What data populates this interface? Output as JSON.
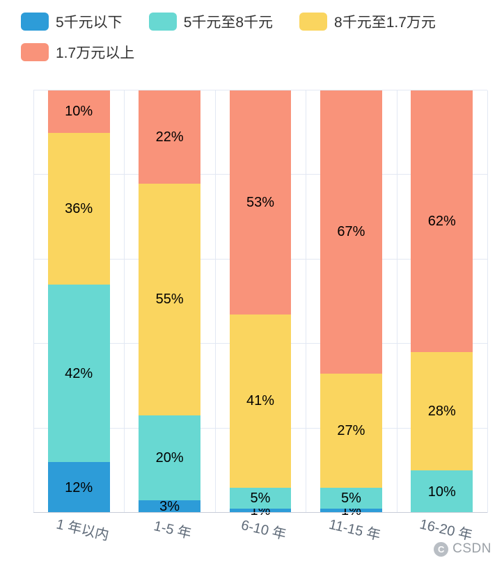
{
  "legend": {
    "items": [
      {
        "label": "5千元以下",
        "color": "#2d9cd8",
        "row": 1
      },
      {
        "label": "5千元至8千元",
        "color": "#68d8d2",
        "row": 1
      },
      {
        "label": "8千元至1.7万元",
        "color": "#fad55f",
        "row": 1
      },
      {
        "label": "1.7万元以上",
        "color": "#f9937a",
        "row": 2
      }
    ]
  },
  "chart_data": {
    "type": "bar",
    "stacked": true,
    "value_unit": "percent",
    "title": "",
    "xlabel": "",
    "ylabel": "",
    "ylim": [
      0,
      100
    ],
    "grid": true,
    "legend_position": "top",
    "value_label_format": "{value}%",
    "categories": [
      "1 年以内",
      "1-5 年",
      "6-10 年",
      "11-15 年",
      "16-20 年"
    ],
    "series": [
      {
        "name": "5千元以下",
        "color": "#2d9cd8",
        "values": [
          12,
          3,
          1,
          1,
          0
        ]
      },
      {
        "name": "5千元至8千元",
        "color": "#68d8d2",
        "values": [
          42,
          20,
          5,
          5,
          10
        ]
      },
      {
        "name": "8千元至1.7万元",
        "color": "#fad55f",
        "values": [
          36,
          55,
          41,
          27,
          28
        ]
      },
      {
        "name": "1.7万元以上",
        "color": "#f9937a",
        "values": [
          10,
          22,
          53,
          67,
          62
        ]
      }
    ]
  },
  "watermark": {
    "label": "CSDN",
    "icon_letter": "C"
  }
}
